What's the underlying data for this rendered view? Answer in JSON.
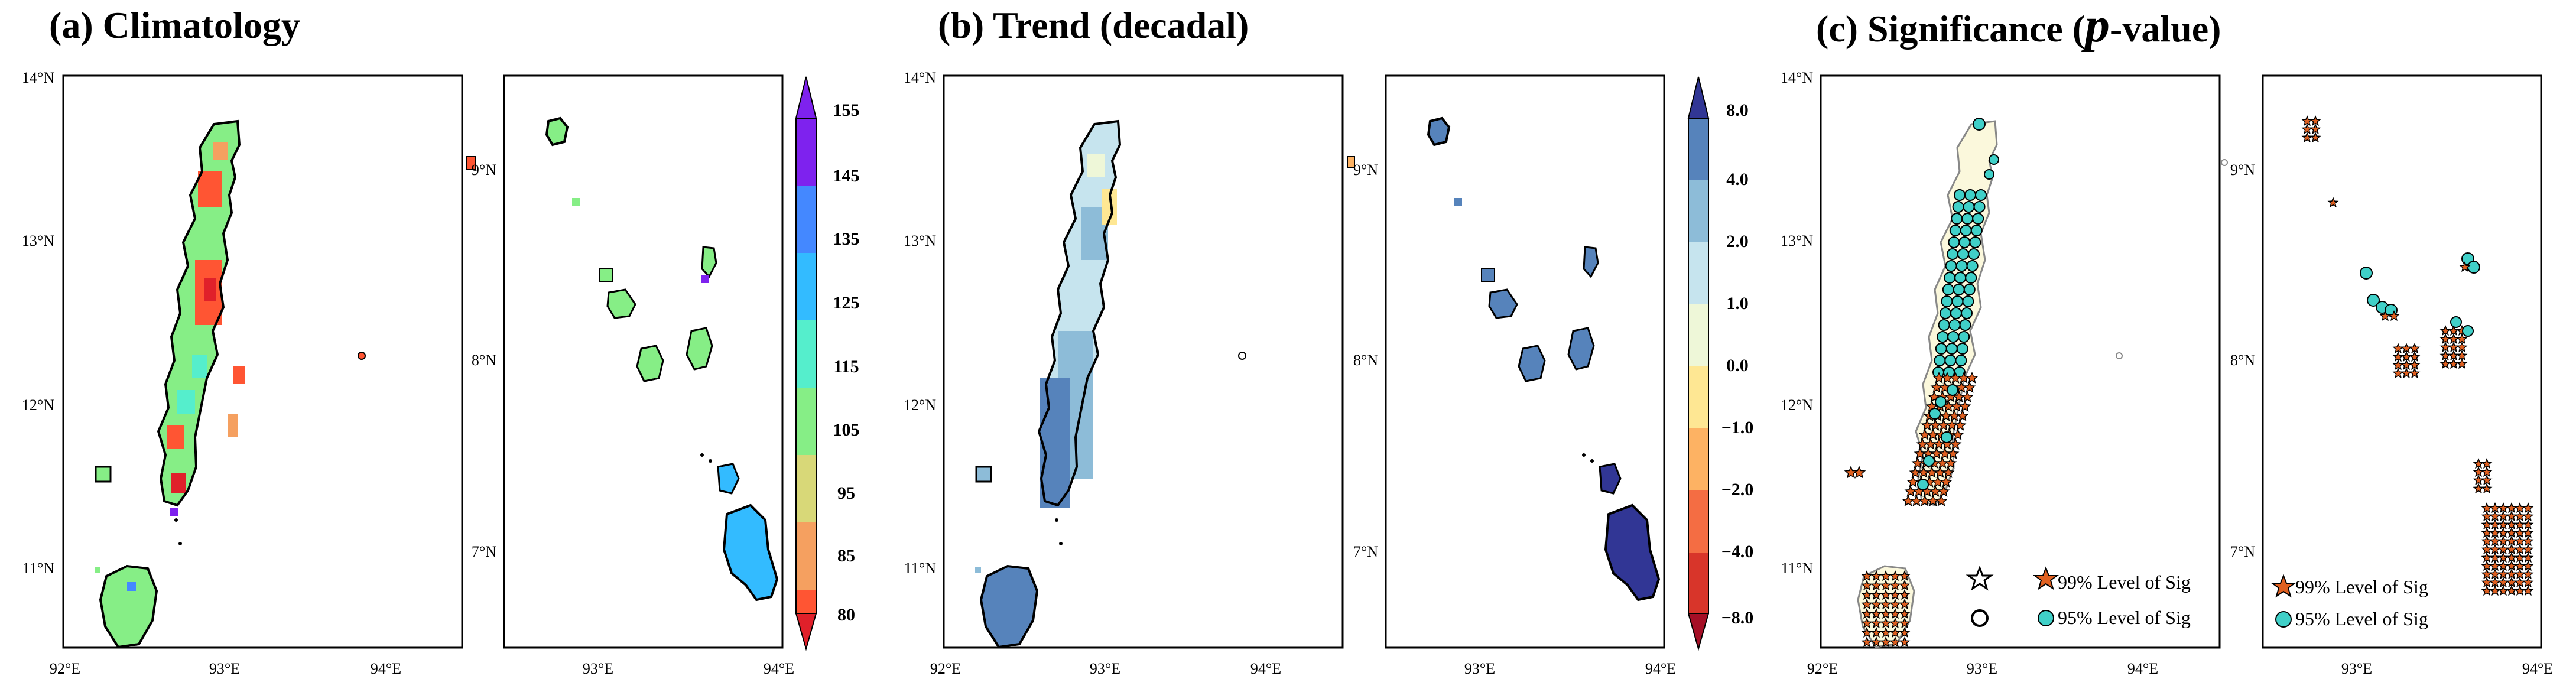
{
  "titles": {
    "a": "(a) Climatology",
    "b": "(b) Trend (decadal)",
    "c_main": "(c) Significance (",
    "c_p": "p",
    "c_rest": "-value)"
  },
  "axes": {
    "main_lat_ticks": [
      "14°N",
      "13°N",
      "12°N",
      "11°N"
    ],
    "main_lon_ticks": [
      "92°E",
      "93°E",
      "94°E"
    ],
    "inset_lat_ticks": [
      "9°N",
      "8°N",
      "7°N"
    ],
    "inset_lon_ticks": [
      "93°E",
      "94°E"
    ]
  },
  "colorbars": {
    "climatology": {
      "labels": [
        "155",
        "145",
        "135",
        "125",
        "115",
        "105",
        "95",
        "85",
        "80"
      ],
      "colors": [
        "#e0202a",
        "#ff5533",
        "#f5a060",
        "#d8d878",
        "#86ee86",
        "#55eecc",
        "#33bbff",
        "#4488ff",
        "#7e22ee"
      ]
    },
    "trend": {
      "labels": [
        "8.0",
        "4.0",
        "2.0",
        "1.0",
        "0.0",
        "−1.0",
        "−2.0",
        "−4.0",
        "−8.0"
      ],
      "colors": [
        "#a50f26",
        "#d8352a",
        "#f46d43",
        "#fdb263",
        "#fee793",
        "#eef7d8",
        "#c6e4ee",
        "#8dbcd8",
        "#5683bb",
        "#313695"
      ]
    }
  },
  "legend": {
    "sig99": "99% Level of Sig",
    "sig95": "95% Level of Sig"
  },
  "colors": {
    "sig_circle": "#40d0c8",
    "sig_star": "#e06020",
    "land_c": "#fbf8dc"
  }
}
